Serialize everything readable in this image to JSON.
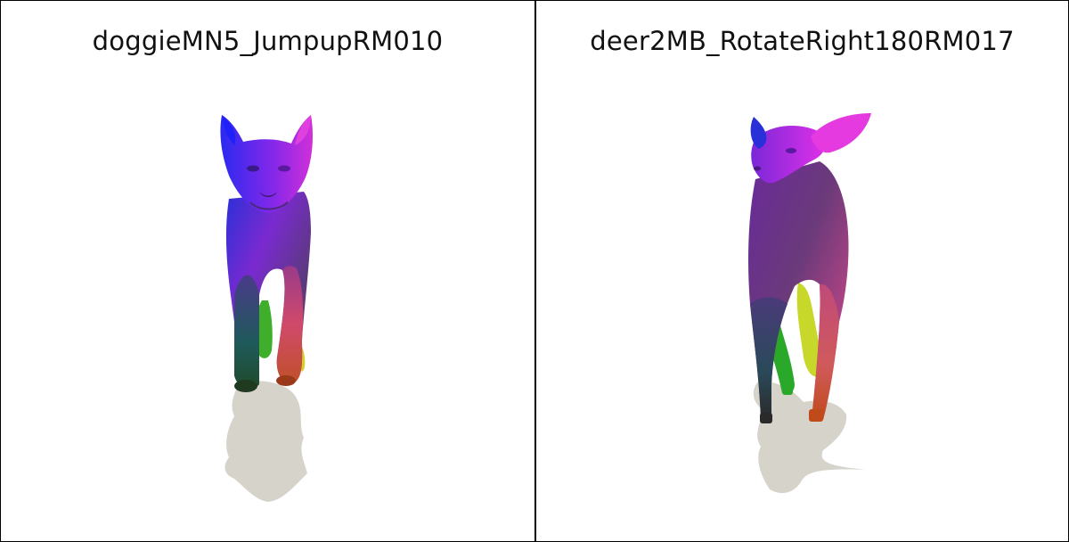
{
  "panels": [
    {
      "title": "doggieMN5_JumpupRM010",
      "subject": "dog-mesh-render"
    },
    {
      "title": "deer2MB_RotateRight180RM017",
      "subject": "deer-mesh-render"
    }
  ],
  "colors": {
    "background": "#ffffff",
    "border": "#000000",
    "shadow": "#d6d3cb"
  }
}
